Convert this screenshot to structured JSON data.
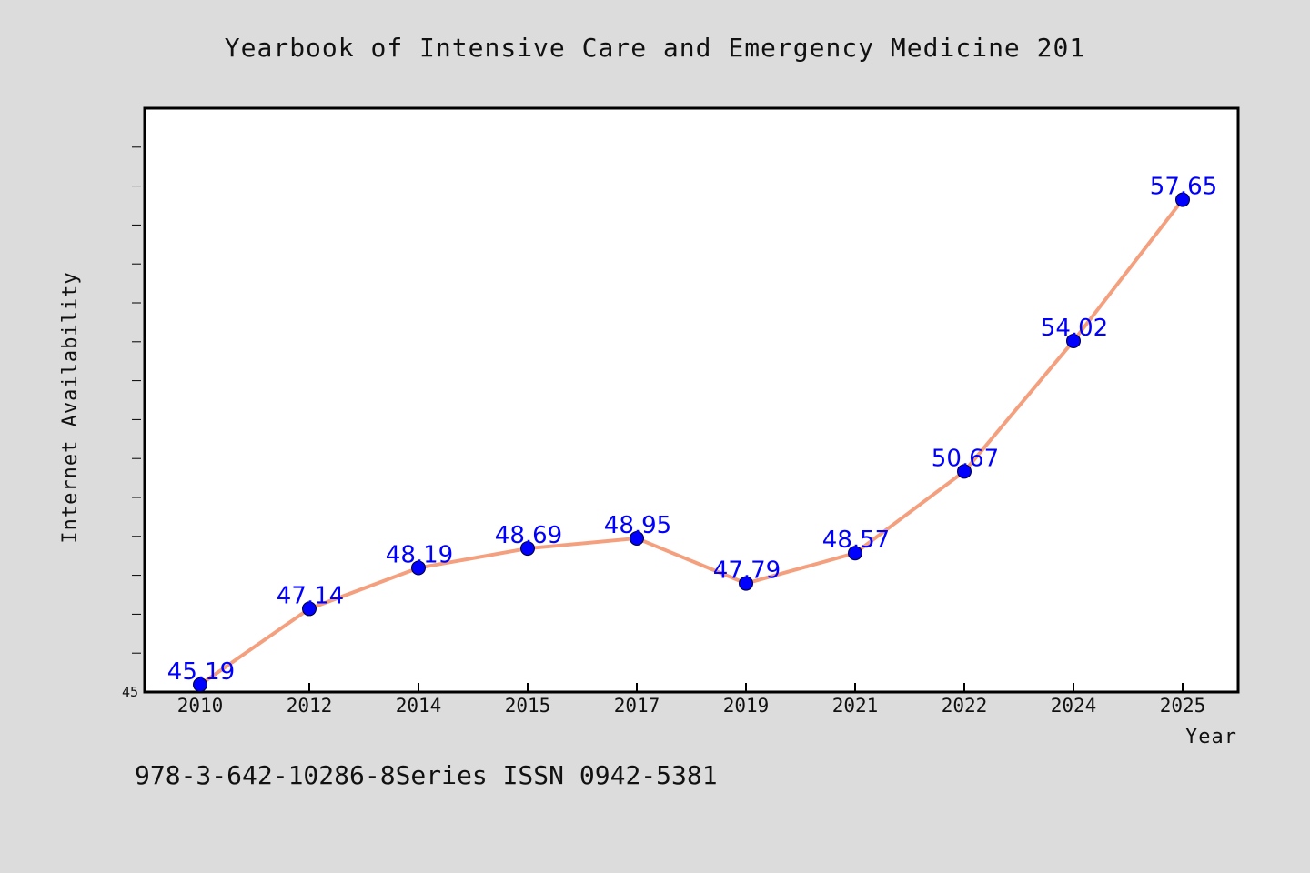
{
  "chart_data": {
    "type": "line",
    "title": "Yearbook of Intensive Care and Emergency Medicine 201",
    "xlabel": "Year",
    "ylabel": "Internet Availability",
    "categories": [
      "2010",
      "2012",
      "2014",
      "2015",
      "2017",
      "2019",
      "2021",
      "2022",
      "2024",
      "2025"
    ],
    "series": [
      {
        "values": [
          45.19,
          47.14,
          48.19,
          48.69,
          48.95,
          47.79,
          48.57,
          50.67,
          54.02,
          57.65
        ]
      }
    ],
    "data_labels": [
      "45.19",
      "47.14",
      "48.19",
      "48.69",
      "48.95",
      "47.79",
      "48.57",
      "50.67",
      "54.02",
      "57.65"
    ],
    "ylim": [
      45,
      60
    ],
    "y_tick_label": "45",
    "grid": false,
    "line_color": "#f4a07e",
    "marker_color": "#0000ff",
    "label_color": "#0000ff",
    "plot_background": "#ffffff",
    "page_background": "#dcdcdc"
  },
  "footer": {
    "text": "978-3-642-10286-8Series ISSN 0942-5381"
  }
}
